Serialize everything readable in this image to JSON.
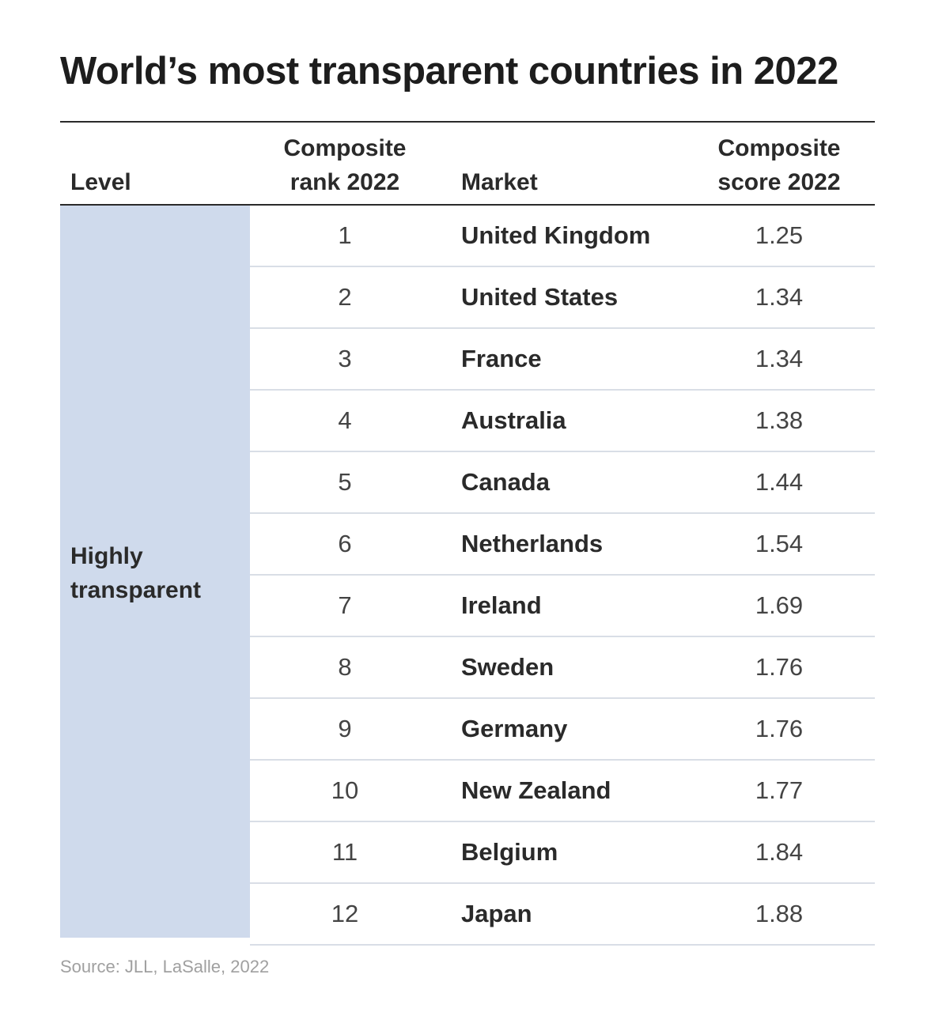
{
  "chart_data": {
    "type": "table",
    "title": "World’s most transparent countries in 2022",
    "columns": {
      "level": "Level",
      "rank_line1": "Composite",
      "rank_line2": "rank 2022",
      "market": "Market",
      "score_line1": "Composite",
      "score_line2": "score 2022"
    },
    "level": {
      "line1": "Highly",
      "line2": "transparent"
    },
    "rows": [
      {
        "rank": "1",
        "market": "United Kingdom",
        "score": "1.25"
      },
      {
        "rank": "2",
        "market": "United States",
        "score": "1.34"
      },
      {
        "rank": "3",
        "market": "France",
        "score": "1.34"
      },
      {
        "rank": "4",
        "market": "Australia",
        "score": "1.38"
      },
      {
        "rank": "5",
        "market": "Canada",
        "score": "1.44"
      },
      {
        "rank": "6",
        "market": "Netherlands",
        "score": "1.54"
      },
      {
        "rank": "7",
        "market": "Ireland",
        "score": "1.69"
      },
      {
        "rank": "8",
        "market": "Sweden",
        "score": "1.76"
      },
      {
        "rank": "9",
        "market": "Germany",
        "score": "1.76"
      },
      {
        "rank": "10",
        "market": "New Zealand",
        "score": "1.77"
      },
      {
        "rank": "11",
        "market": "Belgium",
        "score": "1.84"
      },
      {
        "rank": "12",
        "market": "Japan",
        "score": "1.88"
      }
    ],
    "source": "Source: JLL, LaSalle, 2022"
  },
  "colors": {
    "level_band": "#cfdaec",
    "rule": "#2a2a2a",
    "row_divider": "#d9dee6",
    "source_text": "#a0a0a0"
  }
}
